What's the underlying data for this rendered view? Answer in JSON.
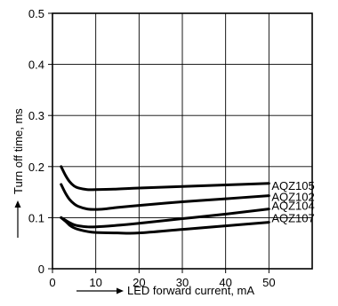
{
  "chart_data": {
    "type": "line",
    "title": "",
    "xlabel": "LED forward current, mA",
    "ylabel": "Turn off time, ms",
    "xlim": [
      0,
      60
    ],
    "ylim": [
      0,
      0.5
    ],
    "xticks": [
      "0",
      "10",
      "20",
      "30",
      "40",
      "50"
    ],
    "xtick_values": [
      0,
      10,
      20,
      30,
      40,
      50
    ],
    "yticks": [
      "0",
      "0.1",
      "0.2",
      "0.3",
      "0.4",
      "0.5"
    ],
    "ytick_values": [
      0,
      0.1,
      0.2,
      0.3,
      0.4,
      0.5
    ],
    "grid": true,
    "legend": "inline labels at right end of curves",
    "series": [
      {
        "name": "AQZ105",
        "x": [
          2,
          3,
          4,
          5,
          6,
          8,
          10,
          15,
          20,
          30,
          40,
          50
        ],
        "y": [
          0.2,
          0.183,
          0.17,
          0.162,
          0.158,
          0.155,
          0.155,
          0.156,
          0.158,
          0.161,
          0.164,
          0.167
        ]
      },
      {
        "name": "AQZ102",
        "x": [
          2,
          3,
          4,
          5,
          6,
          8,
          10,
          12,
          15,
          20,
          30,
          40,
          50
        ],
        "y": [
          0.165,
          0.148,
          0.135,
          0.127,
          0.122,
          0.117,
          0.116,
          0.117,
          0.12,
          0.124,
          0.131,
          0.137,
          0.143
        ]
      },
      {
        "name": "AQZ104",
        "x": [
          2,
          3,
          4,
          5,
          6,
          8,
          10,
          15,
          20,
          30,
          40,
          50
        ],
        "y": [
          0.1,
          0.095,
          0.09,
          0.086,
          0.084,
          0.082,
          0.082,
          0.085,
          0.089,
          0.098,
          0.107,
          0.117
        ]
      },
      {
        "name": "AQZ107",
        "x": [
          2,
          3,
          4,
          5,
          6,
          8,
          10,
          15,
          20,
          30,
          40,
          50
        ],
        "y": [
          0.1,
          0.093,
          0.085,
          0.08,
          0.077,
          0.073,
          0.071,
          0.07,
          0.07,
          0.077,
          0.084,
          0.091
        ]
      }
    ]
  },
  "colors": {
    "line": "#000000",
    "grid": "#000000",
    "background": "#ffffff"
  }
}
